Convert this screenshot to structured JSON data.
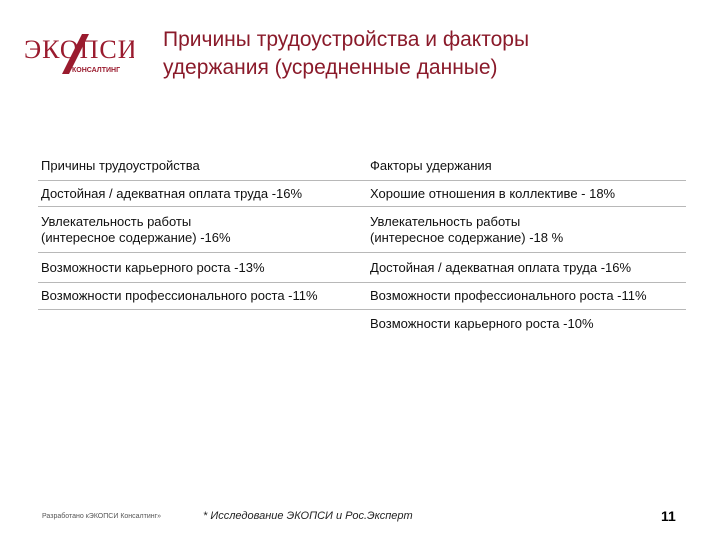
{
  "logo": {
    "text_main": "ЭКОПСИ",
    "text_sub": "КОНСАЛТИНГ"
  },
  "title_lines": [
    "Причины трудоустройства и факторы",
    "удержания (усредненные данные)"
  ],
  "table": {
    "headers": [
      "Причины трудоустройства",
      "Факторы удержания"
    ],
    "rows": [
      {
        "left": [
          "Достойная / адекватная оплата труда -16%"
        ],
        "right": [
          "Хорошие отношения в коллективе - 18%"
        ]
      },
      {
        "left": [
          "Увлекательность работы",
          "(интересное содержание) -16%"
        ],
        "right": [
          "Увлекательность работы",
          "(интересное содержание) -18 %"
        ]
      },
      {
        "left": [
          "Возможности карьерного роста -13%"
        ],
        "right": [
          "Достойная / адекватная оплата труда -16%"
        ]
      },
      {
        "left": [
          "Возможности профессионального роста -11%"
        ],
        "right": [
          "Возможности профессионального роста -11%"
        ]
      },
      {
        "left": [
          ""
        ],
        "right": [
          "Возможности карьерного роста -10%"
        ]
      }
    ]
  },
  "footer": {
    "developed_by": "Разработано кЭКОПСИ Консалтинг»",
    "source": "* Исследование ЭКОПСИ и Рос.Эксперт",
    "page_number": "11"
  }
}
